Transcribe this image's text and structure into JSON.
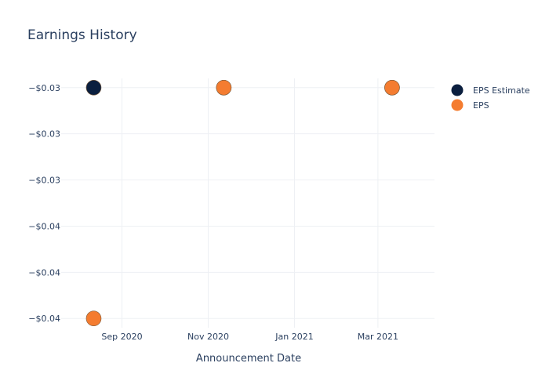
{
  "chart_data": {
    "type": "scatter",
    "title": "Earnings History",
    "xlabel": "Announcement Date",
    "ylabel": "",
    "x_axis_type": "date",
    "xlim": [
      "2020-07-20",
      "2021-04-10"
    ],
    "ylim": [
      -0.0404,
      -0.0296
    ],
    "x_ticks": [
      {
        "value": "2020-09-01",
        "label": "Sep 2020"
      },
      {
        "value": "2020-11-01",
        "label": "Nov 2020"
      },
      {
        "value": "2021-01-01",
        "label": "Jan 2021"
      },
      {
        "value": "2021-03-01",
        "label": "Mar 2021"
      }
    ],
    "y_ticks": [
      {
        "value": -0.03,
        "label": "−$0.03"
      },
      {
        "value": -0.032,
        "label": "−$0.03"
      },
      {
        "value": -0.034,
        "label": "−$0.03"
      },
      {
        "value": -0.036,
        "label": "−$0.04"
      },
      {
        "value": -0.038,
        "label": "−$0.04"
      },
      {
        "value": -0.04,
        "label": "−$0.04"
      }
    ],
    "grid": true,
    "legend_position": "top-right",
    "series": [
      {
        "name": "EPS Estimate",
        "color": "#0b1f3f",
        "points": [
          {
            "x": "2020-08-12",
            "y": -0.03
          },
          {
            "x": "2020-11-12",
            "y": -0.03
          },
          {
            "x": "2021-03-11",
            "y": -0.03
          }
        ]
      },
      {
        "name": "EPS",
        "color": "#f47c30",
        "points": [
          {
            "x": "2020-08-12",
            "y": -0.04
          },
          {
            "x": "2020-11-12",
            "y": -0.03
          },
          {
            "x": "2021-03-11",
            "y": -0.03
          }
        ]
      }
    ]
  }
}
